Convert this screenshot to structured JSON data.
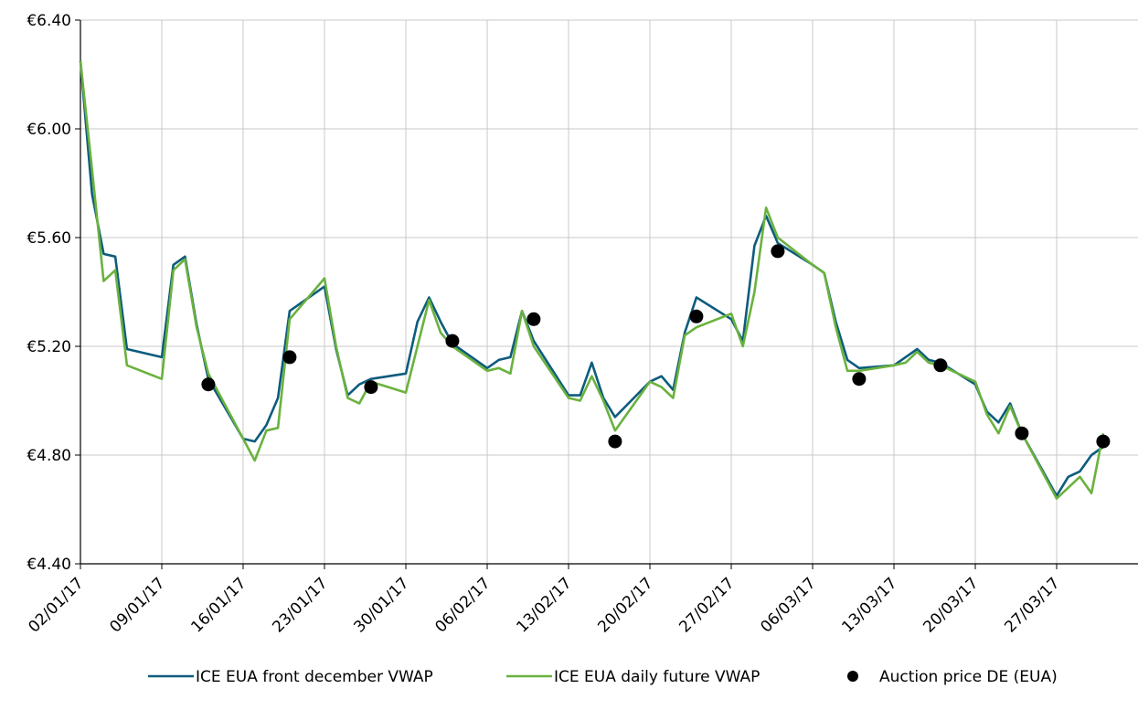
{
  "chart_data": {
    "type": "line",
    "title": "",
    "xlabel": "",
    "ylabel": "",
    "ylim": [
      4.4,
      6.4
    ],
    "y_ticks": [
      {
        "value": 4.4,
        "label": "€4.40"
      },
      {
        "value": 4.8,
        "label": "€4.80"
      },
      {
        "value": 5.2,
        "label": "€5.20"
      },
      {
        "value": 5.6,
        "label": "€5.60"
      },
      {
        "value": 6.0,
        "label": "€6.00"
      },
      {
        "value": 6.4,
        "label": "€6.40"
      }
    ],
    "x_ticks": [
      "02/01/17",
      "09/01/17",
      "16/01/17",
      "23/01/17",
      "30/01/17",
      "06/02/17",
      "13/02/17",
      "20/02/17",
      "27/02/17",
      "06/03/17",
      "13/03/17",
      "20/03/17",
      "27/03/17"
    ],
    "grid": true,
    "legend_position": "bottom",
    "colors": {
      "front_december": "#0d5c7d",
      "daily_future": "#6ab23e",
      "auction": "#000000",
      "grid": "#c8c8c8"
    },
    "series": [
      {
        "name": "ICE EUA front december VWAP",
        "style": "line",
        "color": "#0d5c7d",
        "points": [
          [
            "02/01/17",
            6.25
          ],
          [
            "03/01/17",
            5.76
          ],
          [
            "04/01/17",
            5.54
          ],
          [
            "05/01/17",
            5.53
          ],
          [
            "06/01/17",
            5.19
          ],
          [
            "09/01/17",
            5.16
          ],
          [
            "10/01/17",
            5.5
          ],
          [
            "11/01/17",
            5.53
          ],
          [
            "12/01/17",
            5.28
          ],
          [
            "13/01/17",
            5.08
          ],
          [
            "16/01/17",
            4.86
          ],
          [
            "17/01/17",
            4.85
          ],
          [
            "18/01/17",
            4.91
          ],
          [
            "19/01/17",
            5.01
          ],
          [
            "20/01/17",
            5.33
          ],
          [
            "23/01/17",
            5.42
          ],
          [
            "24/01/17",
            5.19
          ],
          [
            "25/01/17",
            5.02
          ],
          [
            "26/01/17",
            5.06
          ],
          [
            "27/01/17",
            5.08
          ],
          [
            "30/01/17",
            5.1
          ],
          [
            "31/01/17",
            5.29
          ],
          [
            "01/02/17",
            5.38
          ],
          [
            "02/02/17",
            5.29
          ],
          [
            "03/02/17",
            5.21
          ],
          [
            "06/02/17",
            5.12
          ],
          [
            "07/02/17",
            5.15
          ],
          [
            "08/02/17",
            5.16
          ],
          [
            "09/02/17",
            5.33
          ],
          [
            "10/02/17",
            5.22
          ],
          [
            "13/02/17",
            5.02
          ],
          [
            "14/02/17",
            5.02
          ],
          [
            "15/02/17",
            5.14
          ],
          [
            "16/02/17",
            5.01
          ],
          [
            "17/02/17",
            4.94
          ],
          [
            "20/02/17",
            5.07
          ],
          [
            "21/02/17",
            5.09
          ],
          [
            "22/02/17",
            5.04
          ],
          [
            "23/02/17",
            5.25
          ],
          [
            "24/02/17",
            5.38
          ],
          [
            "27/02/17",
            5.3
          ],
          [
            "28/02/17",
            5.22
          ],
          [
            "01/03/17",
            5.57
          ],
          [
            "02/03/17",
            5.68
          ],
          [
            "03/03/17",
            5.58
          ],
          [
            "06/03/17",
            5.5
          ],
          [
            "07/03/17",
            5.47
          ],
          [
            "08/03/17",
            5.29
          ],
          [
            "09/03/17",
            5.15
          ],
          [
            "10/03/17",
            5.12
          ],
          [
            "13/03/17",
            5.13
          ],
          [
            "14/03/17",
            5.16
          ],
          [
            "15/03/17",
            5.19
          ],
          [
            "16/03/17",
            5.15
          ],
          [
            "17/03/17",
            5.14
          ],
          [
            "20/03/17",
            5.06
          ],
          [
            "21/03/17",
            4.96
          ],
          [
            "22/03/17",
            4.92
          ],
          [
            "23/03/17",
            4.99
          ],
          [
            "24/03/17",
            4.88
          ],
          [
            "27/03/17",
            4.65
          ],
          [
            "28/03/17",
            4.72
          ],
          [
            "29/03/17",
            4.74
          ],
          [
            "30/03/17",
            4.8
          ],
          [
            "31/03/17",
            4.83
          ]
        ]
      },
      {
        "name": "ICE EUA daily future VWAP",
        "style": "line",
        "color": "#6ab23e",
        "points": [
          [
            "02/01/17",
            6.25
          ],
          [
            "03/01/17",
            5.85
          ],
          [
            "04/01/17",
            5.44
          ],
          [
            "05/01/17",
            5.48
          ],
          [
            "06/01/17",
            5.13
          ],
          [
            "09/01/17",
            5.08
          ],
          [
            "10/01/17",
            5.48
          ],
          [
            "11/01/17",
            5.52
          ],
          [
            "12/01/17",
            5.27
          ],
          [
            "13/01/17",
            5.1
          ],
          [
            "16/01/17",
            4.86
          ],
          [
            "17/01/17",
            4.78
          ],
          [
            "18/01/17",
            4.89
          ],
          [
            "19/01/17",
            4.9
          ],
          [
            "20/01/17",
            5.3
          ],
          [
            "23/01/17",
            5.45
          ],
          [
            "24/01/17",
            5.2
          ],
          [
            "25/01/17",
            5.01
          ],
          [
            "26/01/17",
            4.99
          ],
          [
            "27/01/17",
            5.07
          ],
          [
            "30/01/17",
            5.03
          ],
          [
            "31/01/17",
            5.2
          ],
          [
            "01/02/17",
            5.37
          ],
          [
            "02/02/17",
            5.25
          ],
          [
            "03/02/17",
            5.2
          ],
          [
            "06/02/17",
            5.11
          ],
          [
            "07/02/17",
            5.12
          ],
          [
            "08/02/17",
            5.1
          ],
          [
            "09/02/17",
            5.33
          ],
          [
            "10/02/17",
            5.2
          ],
          [
            "13/02/17",
            5.01
          ],
          [
            "14/02/17",
            5.0
          ],
          [
            "15/02/17",
            5.09
          ],
          [
            "16/02/17",
            5.0
          ],
          [
            "17/02/17",
            4.89
          ],
          [
            "20/02/17",
            5.07
          ],
          [
            "21/02/17",
            5.05
          ],
          [
            "22/02/17",
            5.01
          ],
          [
            "23/02/17",
            5.24
          ],
          [
            "24/02/17",
            5.27
          ],
          [
            "27/02/17",
            5.32
          ],
          [
            "28/02/17",
            5.2
          ],
          [
            "01/03/17",
            5.4
          ],
          [
            "02/03/17",
            5.71
          ],
          [
            "03/03/17",
            5.6
          ],
          [
            "06/03/17",
            5.5
          ],
          [
            "07/03/17",
            5.47
          ],
          [
            "08/03/17",
            5.27
          ],
          [
            "09/03/17",
            5.11
          ],
          [
            "10/03/17",
            5.11
          ],
          [
            "13/03/17",
            5.13
          ],
          [
            "14/03/17",
            5.14
          ],
          [
            "15/03/17",
            5.18
          ],
          [
            "16/03/17",
            5.14
          ],
          [
            "17/03/17",
            5.13
          ],
          [
            "20/03/17",
            5.07
          ],
          [
            "21/03/17",
            4.95
          ],
          [
            "22/03/17",
            4.88
          ],
          [
            "23/03/17",
            4.98
          ],
          [
            "24/03/17",
            4.88
          ],
          [
            "27/03/17",
            4.64
          ],
          [
            "28/03/17",
            4.68
          ],
          [
            "29/03/17",
            4.72
          ],
          [
            "30/03/17",
            4.66
          ],
          [
            "31/03/17",
            4.88
          ]
        ]
      },
      {
        "name": "Auction price DE (EUA)",
        "style": "scatter",
        "color": "#000000",
        "points": [
          [
            "13/01/17",
            5.06
          ],
          [
            "20/01/17",
            5.16
          ],
          [
            "27/01/17",
            5.05
          ],
          [
            "03/02/17",
            5.22
          ],
          [
            "10/02/17",
            5.3
          ],
          [
            "17/02/17",
            4.85
          ],
          [
            "24/02/17",
            5.31
          ],
          [
            "03/03/17",
            5.55
          ],
          [
            "10/03/17",
            5.08
          ],
          [
            "17/03/17",
            5.13
          ],
          [
            "24/03/17",
            4.88
          ],
          [
            "31/03/17",
            4.85
          ]
        ]
      }
    ]
  }
}
